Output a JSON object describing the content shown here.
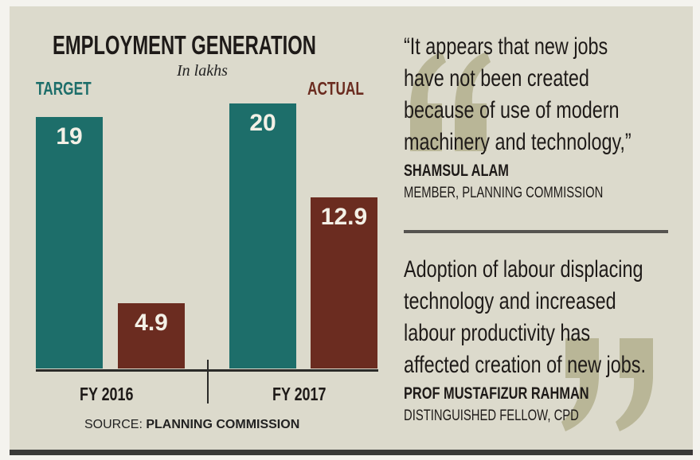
{
  "chart_data": {
    "type": "bar",
    "title": "EMPLOYMENT GENERATION",
    "subtitle": "In lakhs",
    "categories": [
      "FY 2016",
      "FY 2017"
    ],
    "series": [
      {
        "name": "TARGET",
        "color": "#1d6e6a",
        "values": [
          19,
          20
        ],
        "labels": [
          "19",
          "20"
        ]
      },
      {
        "name": "ACTUAL",
        "color": "#6b2c20",
        "values": [
          4.9,
          12.9
        ],
        "labels": [
          "4.9",
          "12.9"
        ]
      }
    ],
    "ylim": [
      0,
      20
    ],
    "source_label": "SOURCE:",
    "source": "PLANNING COMMISSION"
  },
  "quotes": [
    {
      "lines": [
        "“It appears that new jobs",
        "have not been created",
        "because of use of modern",
        "machinery and technology,”"
      ],
      "name": "SHAMSUL ALAM",
      "role": "MEMBER, PLANNING COMMISSION"
    },
    {
      "lines": [
        "Adoption of labour displacing",
        "technology and increased",
        "labour productivity has",
        "affected creation of new jobs."
      ],
      "name": "PROF MUSTAFIZUR RAHMAN",
      "role": "DISTINGUISHED FELLOW, CPD"
    }
  ]
}
